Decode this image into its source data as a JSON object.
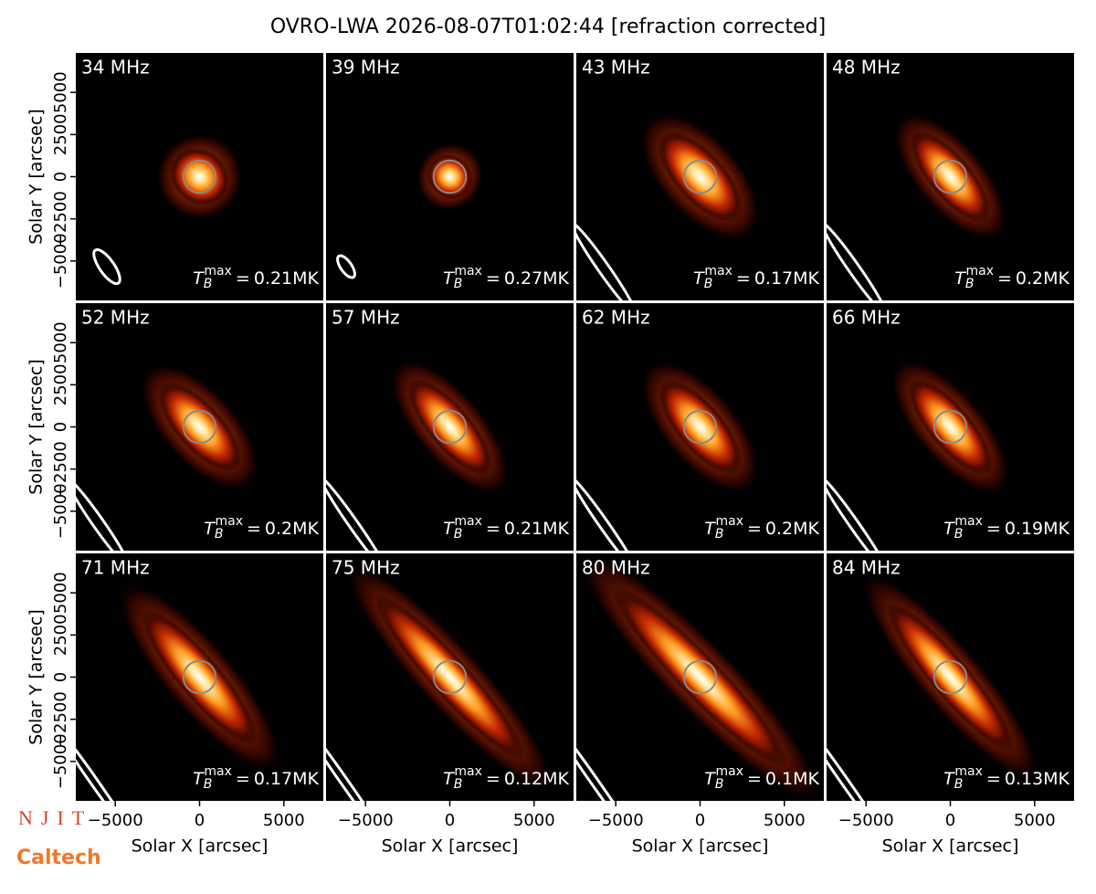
{
  "chart_data": {
    "type": "image-grid",
    "title": "OVRO-LWA 2026-08-07T01:02:44 [refraction corrected]",
    "xlabel": "Solar X [arcsec]",
    "ylabel": "Solar Y [arcsec]",
    "xlim": [
      -7340,
      7340
    ],
    "ylim": [
      -7340,
      7340
    ],
    "xticks": [
      {
        "value": -5000,
        "label": "−5000"
      },
      0,
      5000
    ],
    "yticks": [
      {
        "value": -5000,
        "label": "−5000"
      },
      {
        "value": -2500,
        "label": "−2500"
      },
      0,
      2500,
      5000
    ],
    "tmax_symbol": "T",
    "tmax_sub": "B",
    "tmax_sup": "max",
    "tmax_eq": "=",
    "panels": [
      {
        "label": "34 MHz",
        "tmax": "0.21MK"
      },
      {
        "label": "39 MHz",
        "tmax": "0.27MK"
      },
      {
        "label": "43 MHz",
        "tmax": "0.17MK"
      },
      {
        "label": "48 MHz",
        "tmax": "0.2MK"
      },
      {
        "label": "52 MHz",
        "tmax": "0.2MK"
      },
      {
        "label": "57 MHz",
        "tmax": "0.21MK"
      },
      {
        "label": "62 MHz",
        "tmax": "0.2MK"
      },
      {
        "label": "66 MHz",
        "tmax": "0.19MK"
      },
      {
        "label": "71 MHz",
        "tmax": "0.17MK"
      },
      {
        "label": "75 MHz",
        "tmax": "0.12MK"
      },
      {
        "label": "80 MHz",
        "tmax": "0.1MK"
      },
      {
        "label": "84 MHz",
        "tmax": "0.13MK"
      }
    ]
  },
  "logos": {
    "njit": "NJIT",
    "caltech": "Caltech"
  }
}
